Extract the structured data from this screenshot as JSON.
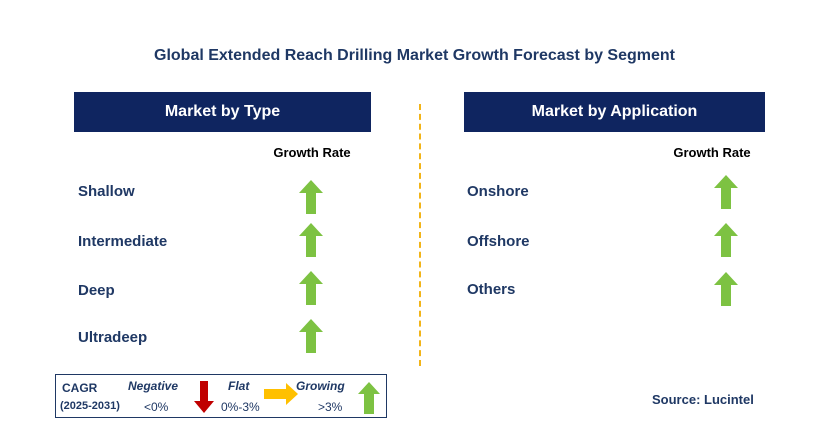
{
  "title": "Global Extended Reach Drilling Market Growth Forecast by Segment",
  "left_panel": {
    "header": "Market by Type",
    "growth_label": "Growth Rate",
    "rows": [
      {
        "label": "Shallow",
        "trend": "growing"
      },
      {
        "label": "Intermediate",
        "trend": "growing"
      },
      {
        "label": "Deep",
        "trend": "growing"
      },
      {
        "label": "Ultradeep",
        "trend": "growing"
      }
    ]
  },
  "right_panel": {
    "header": "Market by Application",
    "growth_label": "Growth Rate",
    "rows": [
      {
        "label": "Onshore",
        "trend": "growing"
      },
      {
        "label": "Offshore",
        "trend": "growing"
      },
      {
        "label": "Others",
        "trend": "growing"
      }
    ]
  },
  "legend": {
    "cagr_label": "CAGR",
    "period": "(2025-2031)",
    "negative_label": "Negative",
    "negative_range": "<0%",
    "flat_label": "Flat",
    "flat_range": "0%-3%",
    "growing_label": "Growing",
    "growing_range": ">3%"
  },
  "source": "Source: Lucintel",
  "colors": {
    "header_bg": "#0f2560",
    "growing": "#7dc242",
    "negative": "#c00000",
    "flat": "#ffc000",
    "divider": "#f2b418"
  },
  "icons": {
    "growing": "up-arrow-icon",
    "negative": "down-arrow-icon",
    "flat": "right-arrow-icon"
  }
}
